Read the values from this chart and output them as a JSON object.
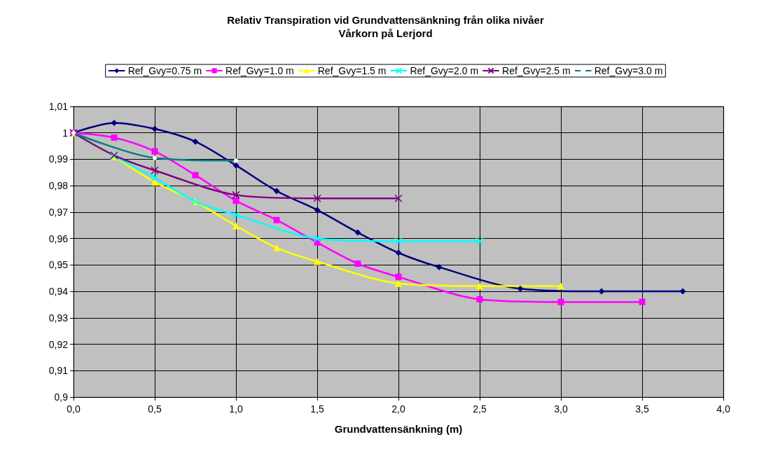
{
  "chart_data": {
    "type": "line",
    "title": "Relativ Transpiration vid Grundvattensänkning från olika nivåer",
    "subtitle": "Vårkorn på Lerjord",
    "xlabel": "Grundvattensänkning (m)",
    "xlim": [
      0,
      4
    ],
    "xticks": [
      {
        "value": 0,
        "label": "0,0"
      },
      {
        "value": 0.5,
        "label": "0,5"
      },
      {
        "value": 1,
        "label": "1,0"
      },
      {
        "value": 1.5,
        "label": "1,5"
      },
      {
        "value": 2,
        "label": "2,0"
      },
      {
        "value": 2.5,
        "label": "2,5"
      },
      {
        "value": 3,
        "label": "3,0"
      },
      {
        "value": 3.5,
        "label": "3,5"
      },
      {
        "value": 4,
        "label": "4,0"
      }
    ],
    "ylim": [
      0.9,
      1.01
    ],
    "yticks": [
      {
        "value": 0.9,
        "label": "0,9"
      },
      {
        "value": 0.91,
        "label": "0,91"
      },
      {
        "value": 0.92,
        "label": "0,92"
      },
      {
        "value": 0.93,
        "label": "0,93"
      },
      {
        "value": 0.94,
        "label": "0,94"
      },
      {
        "value": 0.95,
        "label": "0,95"
      },
      {
        "value": 0.96,
        "label": "0,96"
      },
      {
        "value": 0.97,
        "label": "0,97"
      },
      {
        "value": 0.98,
        "label": "0,98"
      },
      {
        "value": 0.99,
        "label": "0,99"
      },
      1,
      {
        "value": 1.01,
        "label": "1,01"
      }
    ],
    "grid": true,
    "legend": "top",
    "line_style": "solid",
    "series": [
      {
        "name": "Ref_Gvy=0.75 m",
        "color": "#000080",
        "marker": "diamond",
        "x": [
          0,
          0.25,
          0.5,
          0.75,
          1,
          1.25,
          1.5,
          1.75,
          2,
          2.25,
          2.75,
          3.25,
          3.75
        ],
        "values": [
          1,
          1.0038,
          1.0015,
          0.9967,
          0.9877,
          0.978,
          0.9708,
          0.9623,
          0.9546,
          0.9492,
          0.941,
          0.94,
          0.94
        ]
      },
      {
        "name": "Ref_Gvy=1.0 m",
        "color": "#ff00ff",
        "marker": "square",
        "x": [
          0,
          0.25,
          0.5,
          0.75,
          1,
          1.25,
          1.5,
          1.75,
          2,
          2.5,
          3,
          3.5
        ],
        "values": [
          1,
          0.9982,
          0.993,
          0.984,
          0.9743,
          0.967,
          0.9585,
          0.9505,
          0.9455,
          0.937,
          0.936,
          0.936
        ]
      },
      {
        "name": "Ref_Gvy=1.5 m",
        "color": "#ffff00",
        "marker": "triangle",
        "x": [
          0,
          0.25,
          0.5,
          0.75,
          1,
          1.25,
          1.5,
          2,
          2.5,
          3
        ],
        "values": [
          1,
          0.991,
          0.9813,
          0.974,
          0.9648,
          0.9565,
          0.9513,
          0.943,
          0.942,
          0.942
        ]
      },
      {
        "name": "Ref_Gvy=2.0 m",
        "color": "#00ffff",
        "marker": "cross",
        "x": [
          0,
          0.25,
          0.5,
          0.75,
          1,
          1.5,
          2,
          2.5
        ],
        "values": [
          1,
          0.9912,
          0.983,
          0.974,
          0.969,
          0.96,
          0.959,
          0.959
        ]
      },
      {
        "name": "Ref_Gvy=2.5 m",
        "color": "#800080",
        "marker": "cross",
        "x": [
          0,
          0.25,
          0.5,
          1,
          1.5,
          2
        ],
        "values": [
          1,
          0.9915,
          0.9858,
          0.9765,
          0.9752,
          0.9752
        ]
      },
      {
        "name": "Ref_Gvy=3.0 m",
        "color": "#008080",
        "marker": "circle",
        "x": [
          0,
          0.5,
          1
        ],
        "values": [
          1,
          0.9905,
          0.9895
        ]
      }
    ]
  }
}
